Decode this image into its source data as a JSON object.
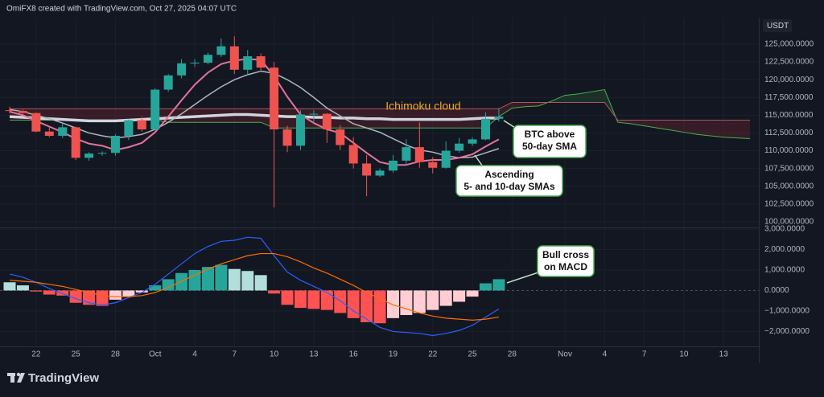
{
  "header": "OmiFX8 created with TradingView.com, Oct 27, 2025 04:07 UTC",
  "logo_text": "TradingView",
  "chart_data": [
    {
      "type": "candlestick",
      "currency": "USDT",
      "up_color": "#26a69a",
      "down_color": "#ef5350",
      "grid": true,
      "ylim": [
        99200,
        128730
      ],
      "yticks": [
        {
          "value": 100000,
          "label": "100,000.0000"
        },
        {
          "value": 102500,
          "label": "102,500.0000"
        },
        {
          "value": 105000,
          "label": "105,000.0000"
        },
        {
          "value": 107500,
          "label": "107,500.0000"
        },
        {
          "value": 110000,
          "label": "110,000.0000"
        },
        {
          "value": 112500,
          "label": "112,500.0000"
        },
        {
          "value": 115000,
          "label": "115,000.0000"
        },
        {
          "value": 117500,
          "label": "117,500.0000"
        },
        {
          "value": 120000,
          "label": "120,000.0000"
        },
        {
          "value": 122500,
          "label": "122,500.0000"
        },
        {
          "value": 125000,
          "label": "125,000.0000"
        }
      ],
      "open": [
        115700,
        115600,
        115300,
        112700,
        112100,
        113300,
        109000,
        109600,
        109700,
        112100,
        114300,
        113000,
        118600,
        120600,
        122300,
        122400,
        123500,
        124700,
        121400,
        123300,
        121700,
        113000,
        110700,
        115100,
        115200,
        113000,
        110800,
        108200,
        106500,
        107200,
        108600,
        110500,
        108400,
        107600,
        110000,
        111000,
        111600,
        114500,
        null,
        null,
        null,
        null,
        null,
        null,
        null,
        null,
        null,
        null,
        null,
        null,
        null,
        null,
        null,
        null,
        null,
        null,
        null
      ],
      "high": [
        116200,
        115800,
        115400,
        113300,
        113800,
        113400,
        109800,
        109900,
        112300,
        114400,
        114800,
        118800,
        120800,
        122900,
        122900,
        123800,
        125800,
        126100,
        124200,
        123700,
        122500,
        113500,
        115700,
        115700,
        115300,
        113600,
        111900,
        109400,
        107500,
        109400,
        111600,
        114000,
        109100,
        111300,
        111800,
        111900,
        115400,
        116000,
        null,
        null,
        null,
        null,
        null,
        null,
        null,
        null,
        null,
        null,
        null,
        null,
        null,
        null,
        null,
        null,
        null,
        null,
        null
      ],
      "low": [
        115300,
        115200,
        112600,
        111900,
        111800,
        108700,
        108600,
        109300,
        109300,
        111500,
        112700,
        112900,
        118300,
        120200,
        121800,
        122200,
        123200,
        120800,
        120600,
        121200,
        102000,
        109800,
        110100,
        113900,
        111100,
        110100,
        107500,
        103600,
        106300,
        106900,
        107900,
        107600,
        106800,
        107500,
        109700,
        110700,
        111500,
        114100,
        null,
        null,
        null,
        null,
        null,
        null,
        null,
        null,
        null,
        null,
        null,
        null,
        null,
        null,
        null,
        null,
        null,
        null,
        null
      ],
      "close": [
        115600,
        115300,
        112700,
        112100,
        113300,
        109000,
        109600,
        109700,
        112100,
        114300,
        113000,
        118600,
        120600,
        122300,
        122400,
        123500,
        124700,
        121400,
        123300,
        121700,
        113000,
        110700,
        115100,
        115200,
        113000,
        110800,
        108200,
        106500,
        107200,
        108600,
        110500,
        108400,
        107600,
        110000,
        111000,
        111600,
        114500,
        114800,
        null,
        null,
        null,
        null,
        null,
        null,
        null,
        null,
        null,
        null,
        null,
        null,
        null,
        null,
        null,
        null,
        null,
        null,
        null
      ],
      "cloud": {
        "span_a_color": "#4caf50",
        "span_b_color": "#a8585f",
        "bull_fill": "rgba(76,175,80,0.16)",
        "bear_fill": "rgba(242,54,69,0.16)",
        "span_a": [
          114300,
          114300,
          114300,
          114300,
          114300,
          114300,
          114300,
          114300,
          114300,
          114300,
          114300,
          114300,
          114000,
          114000,
          114000,
          114000,
          114000,
          114000,
          114000,
          114000,
          113200,
          113200,
          113200,
          113200,
          113200,
          113200,
          113200,
          113200,
          113200,
          113200,
          113200,
          113200,
          113200,
          113200,
          113200,
          113200,
          113200,
          114800,
          116000,
          116200,
          116300,
          117000,
          117800,
          118000,
          118300,
          118600,
          114000,
          113800,
          113500,
          113200,
          112900,
          112600,
          112300,
          112100,
          111900,
          111800,
          111700
        ],
        "span_b": [
          115900,
          115900,
          115900,
          115900,
          115900,
          115900,
          115900,
          115900,
          115900,
          115900,
          115900,
          115900,
          115900,
          115900,
          115900,
          115900,
          115900,
          115900,
          115900,
          115900,
          115900,
          115900,
          115900,
          115900,
          115900,
          115900,
          115900,
          115900,
          115900,
          115900,
          115900,
          115900,
          115900,
          115900,
          115900,
          115900,
          115900,
          115900,
          116800,
          116800,
          116800,
          116800,
          116800,
          116800,
          116800,
          116800,
          114300,
          114300,
          114300,
          114300,
          114300,
          114300,
          114300,
          114300,
          114300,
          114300,
          114300
        ]
      },
      "lines": [
        {
          "color": "#d1d4dc",
          "width": 3.5,
          "values": [
            114800,
            114700,
            114600,
            114500,
            114400,
            114300,
            114200,
            114200,
            114200,
            114300,
            114400,
            114500,
            114600,
            114700,
            114800,
            114900,
            115000,
            115100,
            115100,
            115000,
            114900,
            114800,
            114800,
            114700,
            114700,
            114600,
            114600,
            114500,
            114500,
            114400,
            114400,
            114400,
            114400,
            114400,
            114400,
            114500,
            114600,
            114600,
            null,
            null,
            null,
            null,
            null,
            null,
            null,
            null,
            null,
            null,
            null,
            null,
            null,
            null,
            null,
            null,
            null,
            null,
            null
          ]
        },
        {
          "color": "#b2b5be",
          "width": 1.5,
          "values": [
            115800,
            115500,
            115000,
            114500,
            113900,
            113200,
            112500,
            112100,
            111800,
            112000,
            112300,
            113000,
            114000,
            115200,
            116500,
            117800,
            119000,
            120000,
            120700,
            121200,
            120900,
            120000,
            118900,
            117500,
            116000,
            114900,
            113800,
            113200,
            112600,
            111700,
            110800,
            110100,
            109800,
            109300,
            109000,
            109100,
            109700,
            110300,
            null,
            null,
            null,
            null,
            null,
            null,
            null,
            null,
            null,
            null,
            null,
            null,
            null,
            null,
            null,
            null,
            null,
            null,
            null
          ]
        },
        {
          "color": "#e5739a",
          "width": 2,
          "values": [
            115500,
            115000,
            114200,
            113400,
            112600,
            111700,
            111000,
            110700,
            110100,
            110500,
            111100,
            112600,
            114800,
            117100,
            119300,
            121000,
            122200,
            122700,
            122900,
            122800,
            120500,
            117600,
            115100,
            113900,
            113000,
            112500,
            111100,
            109700,
            108400,
            108000,
            108000,
            108500,
            108700,
            108700,
            109000,
            109500,
            110600,
            111600,
            null,
            null,
            null,
            null,
            null,
            null,
            null,
            null,
            null,
            null,
            null,
            null,
            null,
            null,
            null,
            null,
            null,
            null,
            null
          ]
        }
      ],
      "annotations": [
        {
          "text": "Ichimoku cloud",
          "color": "#f5a623"
        },
        {
          "lines": [
            "BTC above",
            "50-day SMA"
          ]
        },
        {
          "lines": [
            "Ascending",
            "5- and 10-day SMAs"
          ]
        }
      ]
    },
    {
      "type": "macd",
      "grid": true,
      "categories": [
        null,
        null,
        "22",
        null,
        null,
        "25",
        null,
        null,
        "28",
        null,
        null,
        "Oct",
        null,
        null,
        "4",
        null,
        null,
        "7",
        null,
        null,
        "10",
        null,
        null,
        "13",
        null,
        null,
        "16",
        null,
        null,
        "19",
        null,
        null,
        "22",
        null,
        null,
        "25",
        null,
        null,
        "28",
        null,
        null,
        null,
        "Nov",
        null,
        null,
        "4",
        null,
        null,
        "7",
        null,
        null,
        "10",
        null,
        null,
        "13",
        null,
        null
      ],
      "ylim": [
        -2690,
        3000
      ],
      "yticks": [
        {
          "value": 3000,
          "label": "3,000.0000"
        },
        {
          "value": 2000,
          "label": "2,000.0000"
        },
        {
          "value": 1000,
          "label": "1,000.0000"
        },
        {
          "value": 0,
          "label": "0.0000"
        },
        {
          "value": -1000,
          "label": "−1,000.0000"
        },
        {
          "value": -2000,
          "label": "−2,000.0000"
        }
      ],
      "histogram": {
        "colors": {
          "up_rising": "#26a69a",
          "up_falling": "#b2dfdb",
          "down_falling": "#ff5252",
          "down_rising": "#ffcdd2"
        },
        "values": [
          400,
          250,
          -50,
          -200,
          -250,
          -600,
          -700,
          -750,
          -450,
          -300,
          -100,
          250,
          550,
          850,
          1000,
          1150,
          1250,
          1050,
          950,
          750,
          -150,
          -700,
          -850,
          -900,
          -950,
          -1100,
          -1350,
          -1550,
          -1600,
          -1350,
          -1200,
          -1100,
          -950,
          -750,
          -550,
          -300,
          350,
          550,
          null,
          null,
          null,
          null,
          null,
          null,
          null,
          null,
          null,
          null,
          null,
          null,
          null,
          null,
          null,
          null,
          null,
          null,
          null
        ]
      },
      "series": [
        {
          "color": "#2962ff",
          "values": [
            800,
            650,
            400,
            100,
            -150,
            -400,
            -600,
            -700,
            -600,
            -350,
            -100,
            300,
            800,
            1300,
            1800,
            2150,
            2400,
            2450,
            2600,
            2550,
            1700,
            900,
            500,
            200,
            -100,
            -500,
            -1000,
            -1400,
            -1800,
            -2000,
            -2050,
            -2100,
            -2200,
            -2100,
            -1950,
            -1700,
            -1300,
            -900,
            null,
            null,
            null,
            null,
            null,
            null,
            null,
            null,
            null,
            null,
            null,
            null,
            null,
            null,
            null,
            null,
            null,
            null,
            null
          ]
        },
        {
          "color": "#ff6d00",
          "values": [
            500,
            450,
            400,
            300,
            200,
            50,
            -100,
            -250,
            -300,
            -300,
            -250,
            -100,
            150,
            450,
            750,
            1050,
            1300,
            1500,
            1700,
            1800,
            1800,
            1650,
            1400,
            1100,
            850,
            550,
            250,
            -100,
            -400,
            -700,
            -900,
            -1100,
            -1250,
            -1350,
            -1400,
            -1450,
            -1400,
            -1300,
            null,
            null,
            null,
            null,
            null,
            null,
            null,
            null,
            null,
            null,
            null,
            null,
            null,
            null,
            null,
            null,
            null,
            null,
            null
          ]
        }
      ],
      "annotations": [
        {
          "lines": [
            "Bull cross",
            "on MACD"
          ]
        }
      ]
    }
  ]
}
